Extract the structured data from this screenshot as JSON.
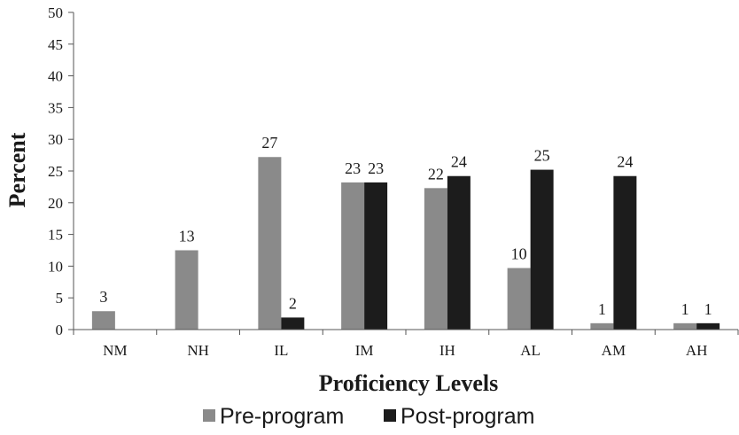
{
  "chart_data": {
    "type": "bar",
    "categories": [
      "NM",
      "NH",
      "IL",
      "IM",
      "IH",
      "AL",
      "AM",
      "AH"
    ],
    "series": [
      {
        "name": "Pre-program",
        "values": [
          3,
          13,
          27,
          23,
          22,
          10,
          1,
          1
        ],
        "color": "#8a8a8a"
      },
      {
        "name": "Post-program",
        "values": [
          null,
          null,
          2,
          23,
          24,
          25,
          24,
          1
        ],
        "color": "#1c1c1c"
      }
    ],
    "bar_values": [
      [
        2.9,
        12.5,
        27.2,
        23.2,
        22.3,
        9.7,
        1.0,
        1.0
      ],
      [
        null,
        null,
        1.9,
        23.2,
        24.2,
        25.2,
        24.2,
        1.0
      ]
    ],
    "title": "",
    "xlabel": "Proficiency Levels",
    "ylabel": "Percent",
    "ylim": [
      0,
      50
    ],
    "yticks": [
      "0",
      "5",
      "10",
      "15",
      "20",
      "25",
      "30",
      "35",
      "40",
      "45",
      "50"
    ],
    "grid": false,
    "legend_position": "bottom"
  }
}
